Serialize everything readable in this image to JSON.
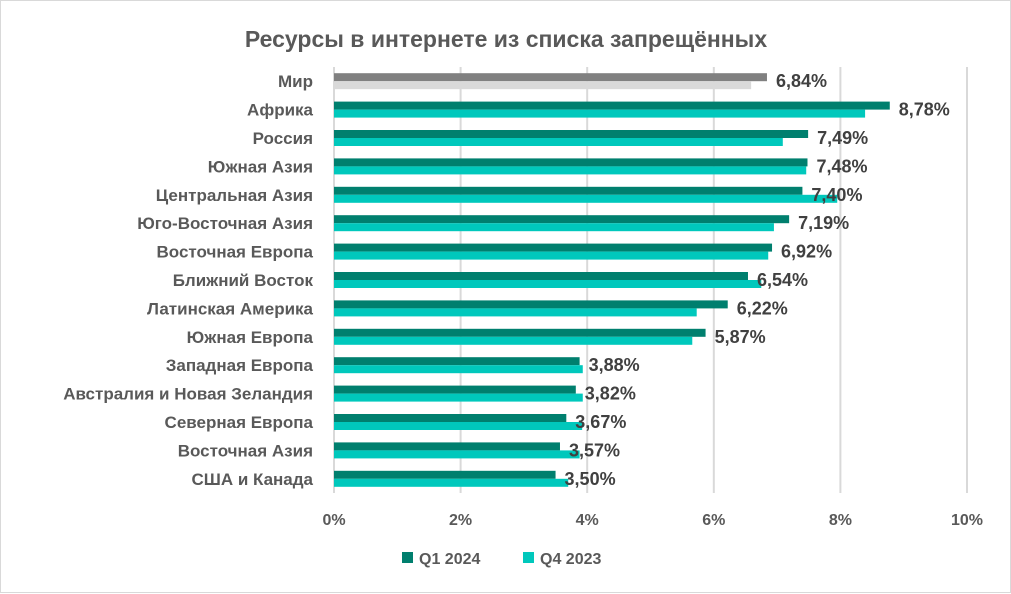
{
  "chart_data": {
    "type": "bar",
    "orientation": "horizontal",
    "title": "Ресурсы в интернете из списка запрещённых",
    "categories": [
      "Мир",
      "Африка",
      "Россия",
      "Южная Азия",
      "Центральная Азия",
      "Юго-Восточная Азия",
      "Восточная Европа",
      "Ближний Восток",
      "Латинская Америка",
      "Южная Европа",
      "Западная Европа",
      "Австралия и Новая Зеландия",
      "Северная Европа",
      "Восточная Азия",
      "США и Канада"
    ],
    "series": [
      {
        "name": "Q1 2024",
        "color": "#007f6e",
        "highlight_color": "#808080",
        "values": [
          6.84,
          8.78,
          7.49,
          7.48,
          7.4,
          7.19,
          6.92,
          6.54,
          6.22,
          5.87,
          3.88,
          3.82,
          3.67,
          3.57,
          3.5
        ],
        "labels": [
          "6,84%",
          "8,78%",
          "7,49%",
          "7,48%",
          "7,40%",
          "7,19%",
          "6,92%",
          "6,54%",
          "6,22%",
          "5,87%",
          "3,88%",
          "3,82%",
          "3,67%",
          "3,57%",
          "3,50%"
        ]
      },
      {
        "name": "Q4 2023",
        "color": "#00c8bc",
        "highlight_color": "#d9d9d9",
        "values": [
          6.59,
          8.39,
          7.09,
          7.46,
          7.95,
          6.95,
          6.86,
          6.75,
          5.73,
          5.66,
          3.93,
          3.93,
          3.92,
          3.88,
          3.7
        ]
      }
    ],
    "xlim": [
      0,
      10
    ],
    "xticks": [
      "0%",
      "2%",
      "4%",
      "6%",
      "8%",
      "10%"
    ],
    "grid": true,
    "legend": "bottom",
    "label_color": "#404040"
  }
}
